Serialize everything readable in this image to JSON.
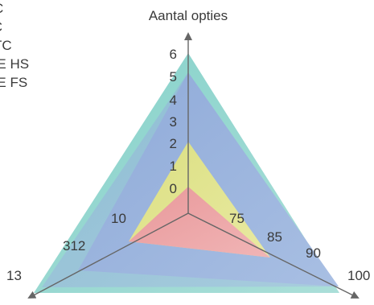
{
  "chart_data": {
    "type": "radar",
    "legend": [
      "C",
      "IC",
      "TC",
      "TE HS",
      "TE FS"
    ],
    "legend_placement": "top-left",
    "axes": [
      {
        "name": "Aantal opties",
        "ticks": [
          "0",
          "1",
          "2",
          "3",
          "4",
          "5",
          "6"
        ],
        "max_label": ""
      },
      {
        "name": "",
        "ticks": [
          "75",
          "85",
          "90"
        ],
        "max_label": "100"
      },
      {
        "name": "",
        "ticks": [
          "10",
          "312"
        ],
        "max_label": "13"
      }
    ],
    "series": [
      {
        "label": "C",
        "color": "#e8a3a8",
        "values": [
          0,
          75,
          10
        ]
      },
      {
        "label": "IC",
        "color": "#e4e58c",
        "values": [
          2,
          75,
          10
        ]
      },
      {
        "label": "TC",
        "color": "#9fb6dd",
        "values": [
          5,
          85,
          312
        ]
      },
      {
        "label": "TE HS",
        "color": "#9fb6dd",
        "values": [
          5,
          90,
          312
        ]
      },
      {
        "label": "TE FS",
        "color": "#8fd3cc",
        "values": [
          6,
          100,
          13
        ]
      }
    ]
  }
}
